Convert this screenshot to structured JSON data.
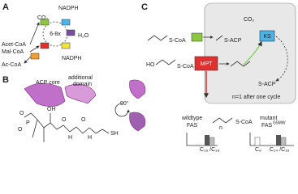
{
  "panel_a": {
    "label": "A",
    "nadph_top": "NADPH",
    "co2": "CO₂",
    "cycle": "6-8x",
    "h2o": "H₂O",
    "nadph_bottom": "NADPH",
    "acet_coa": "Acet-CoA",
    "mal_coa": "Mal-CoA",
    "ac_coa": "Ac-CoA"
  },
  "panel_b": {
    "label": "B",
    "acp_core": "ACP core",
    "additional_domain": [
      "additional",
      "domain"
    ],
    "rotation": "90°",
    "atoms": {
      "o1": "O",
      "p": "P",
      "o2": "O",
      "oh": "OH",
      "n1": "H",
      "n2": "H",
      "sh": "SH",
      "o3": "O",
      "o4": "O"
    }
  },
  "panel_c": {
    "label": "C",
    "s_coa_1": "S-CoA",
    "s_acp_1": "S-ACP",
    "ks": "KS",
    "co2": "CO₂",
    "ho": "HO",
    "s_coa_2": "S-CoA",
    "mpt": "MPT",
    "s_acp_2": "S-ACP",
    "n_note": "n=1 after one cycle",
    "s_coa_3": "S-CoA",
    "n": "n",
    "wildtype": {
      "line1": "wildtype",
      "line2": "FAS",
      "label": "C₁₆ /C₁₈"
    },
    "mutant": {
      "line1": "mutant",
      "line2": "FAS",
      "sup": "G5MW",
      "label_1": "C₈",
      "label_2": "C₁₄ /C₁₆"
    }
  }
}
